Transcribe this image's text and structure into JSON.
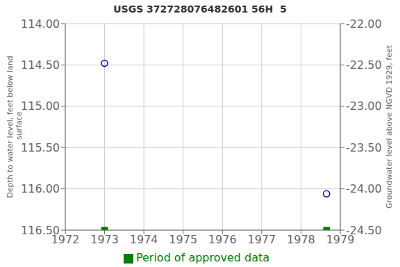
{
  "chart_data": {
    "type": "scatter",
    "title": "USGS 372728076482601 56H  5",
    "ylabel": "Depth to water level, feet below land\n surface",
    "y2label": "Groundwater level above NGVD 1929, feet",
    "x": [
      1973.0,
      1978.65
    ],
    "series": [
      {
        "values": [
          114.48,
          116.06
        ],
        "color": "#0000cc",
        "marker": "circle"
      },
      {
        "name": "Period of approved data",
        "values": [
          116.5,
          116.5
        ],
        "color": "#008000",
        "marker": "square"
      }
    ],
    "xlim": [
      1972,
      1979
    ],
    "xticks": [
      1972,
      1973,
      1974,
      1975,
      1976,
      1977,
      1978,
      1979
    ],
    "ylim": [
      116.5,
      114.0
    ],
    "yticks": [
      {
        "value": 114.0,
        "label": "114.00"
      },
      {
        "value": 114.5,
        "label": "114.50"
      },
      {
        "value": 115.0,
        "label": "115.00"
      },
      {
        "value": 115.5,
        "label": "115.50"
      },
      {
        "value": 116.0,
        "label": "116.00"
      },
      {
        "value": 116.5,
        "label": "116.50"
      }
    ],
    "y2lim": [
      -24.5,
      -22.0
    ],
    "y2ticks": [
      {
        "value": -22.0,
        "label": "-22.00"
      },
      {
        "value": -22.5,
        "label": "-22.50"
      },
      {
        "value": -23.0,
        "label": "-23.00"
      },
      {
        "value": -23.5,
        "label": "-23.50"
      },
      {
        "value": -24.0,
        "label": "-24.00"
      },
      {
        "value": -24.5,
        "label": "-24.50"
      }
    ],
    "grid": true,
    "legend": "bottom"
  }
}
